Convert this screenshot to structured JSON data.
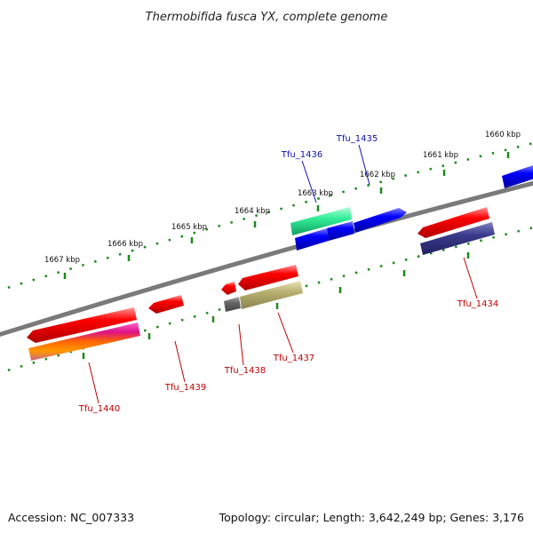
{
  "title": "Thermobifida fusca YX, complete genome",
  "footer": {
    "accession": "Accession: NC_007333",
    "topology": "Topology: circular; Length: 3,642,249 bp; Genes: 3,176"
  },
  "colors": {
    "backbone": "#7a7a7a",
    "ticks": "#1a8a1a",
    "label_plus": "#1010b0",
    "label_minus": "#c00000"
  },
  "kbp_labels": [
    "1667 kbp",
    "1666 kbp",
    "1665 kbp",
    "1664 kbp",
    "1663 kbp",
    "1662 kbp",
    "1661 kbp",
    "1660 kbp"
  ],
  "features": [
    {
      "name": "Tfu_1434",
      "strand": "minus",
      "colors": [
        "#ff0000",
        "#3a3a8a"
      ]
    },
    {
      "name": "Tfu_1435",
      "strand": "plus",
      "colors": [
        "#0000ff"
      ]
    },
    {
      "name": "Tfu_1436",
      "strand": "plus",
      "colors": [
        "#33ee99",
        "#0000ff"
      ]
    },
    {
      "name": "Tfu_1437",
      "strand": "minus",
      "colors": [
        "#ff0000",
        "#b8b070"
      ]
    },
    {
      "name": "Tfu_1438",
      "strand": "minus",
      "colors": [
        "#ff0000",
        "#666666"
      ]
    },
    {
      "name": "Tfu_1439",
      "strand": "minus",
      "colors": [
        "#ff0000"
      ]
    },
    {
      "name": "Tfu_1440",
      "strand": "minus",
      "colors": [
        "#ff0000",
        "#dd1188",
        "#ff9900"
      ]
    }
  ]
}
